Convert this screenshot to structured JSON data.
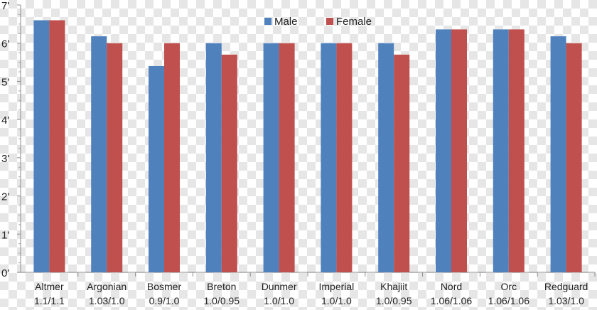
{
  "chart_data": {
    "type": "bar",
    "title": "",
    "xlabel": "",
    "ylabel": "",
    "ylim": [
      0,
      7
    ],
    "y_tick_labels": [
      "0'",
      "1'",
      "2'",
      "3'",
      "4'",
      "5'",
      "6'",
      "7'"
    ],
    "categories": [
      {
        "name": "Altmer",
        "ratio": "1.1/1.1"
      },
      {
        "name": "Argonian",
        "ratio": "1.03/1.0"
      },
      {
        "name": "Bosmer",
        "ratio": "0.9/1.0"
      },
      {
        "name": "Breton",
        "ratio": "1.0/0.95"
      },
      {
        "name": "Dunmer",
        "ratio": "1.0/1.0"
      },
      {
        "name": "Imperial",
        "ratio": "1.0/1.0"
      },
      {
        "name": "Khajiit",
        "ratio": "1.0/0.95"
      },
      {
        "name": "Nord",
        "ratio": "1.06/1.06"
      },
      {
        "name": "Orc",
        "ratio": "1.06/1.06"
      },
      {
        "name": "Redguard",
        "ratio": "1.03/1.0"
      }
    ],
    "series": [
      {
        "name": "Male",
        "color": "#4f81bd",
        "values": [
          6.6,
          6.18,
          5.4,
          6.0,
          6.0,
          6.0,
          6.0,
          6.36,
          6.36,
          6.18
        ]
      },
      {
        "name": "Female",
        "color": "#c0504d",
        "values": [
          6.6,
          6.0,
          6.0,
          5.7,
          6.0,
          6.0,
          5.7,
          6.36,
          6.36,
          6.0
        ]
      }
    ],
    "grid": false,
    "legend_position": "top-right"
  }
}
